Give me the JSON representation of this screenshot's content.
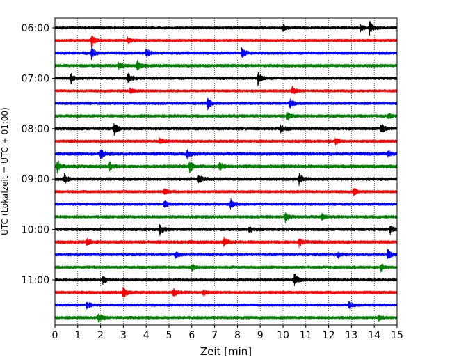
{
  "chart_data": {
    "type": "line",
    "title": "",
    "xlabel": "Zeit  [min]",
    "ylabel": "UTC (Lokalzeit = UTC + 01:00)",
    "xlim": [
      0,
      15
    ],
    "x_ticks": [
      "0",
      "1",
      "2",
      "3",
      "4",
      "5",
      "6",
      "7",
      "8",
      "9",
      "10",
      "11",
      "12",
      "13",
      "14",
      "15"
    ],
    "y_ticks": [
      "06:00",
      "07:00",
      "08:00",
      "09:00",
      "10:00",
      "11:00"
    ],
    "grid": "vertical dotted",
    "legend": "none",
    "trace_interval_min": 15,
    "traces": [
      {
        "start": "06:00",
        "color": "#000000",
        "amplitude": 0.25,
        "events": [
          {
            "t": 13.8,
            "a": 1.0
          },
          {
            "t": 13.4,
            "a": 0.6
          },
          {
            "t": 10.0,
            "a": 0.4
          }
        ]
      },
      {
        "start": "06:15",
        "color": "#ff0000",
        "amplitude": 0.25,
        "events": [
          {
            "t": 1.6,
            "a": 1.0
          },
          {
            "t": 3.2,
            "a": 0.5
          }
        ]
      },
      {
        "start": "06:30",
        "color": "#0000ff",
        "amplitude": 0.3,
        "events": [
          {
            "t": 1.6,
            "a": 0.9
          },
          {
            "t": 4.0,
            "a": 0.7
          },
          {
            "t": 8.2,
            "a": 0.9
          }
        ]
      },
      {
        "start": "06:45",
        "color": "#008000",
        "amplitude": 0.3,
        "events": [
          {
            "t": 3.6,
            "a": 0.8
          },
          {
            "t": 2.8,
            "a": 0.5
          }
        ]
      },
      {
        "start": "07:00",
        "color": "#000000",
        "amplitude": 0.3,
        "events": [
          {
            "t": 0.7,
            "a": 0.7
          },
          {
            "t": 3.2,
            "a": 0.9
          },
          {
            "t": 8.9,
            "a": 1.0
          }
        ]
      },
      {
        "start": "07:15",
        "color": "#ff0000",
        "amplitude": 0.25,
        "events": [
          {
            "t": 10.4,
            "a": 0.6
          },
          {
            "t": 3.3,
            "a": 0.4
          }
        ]
      },
      {
        "start": "07:30",
        "color": "#0000ff",
        "amplitude": 0.25,
        "events": [
          {
            "t": 6.7,
            "a": 0.9
          },
          {
            "t": 10.3,
            "a": 0.7
          }
        ]
      },
      {
        "start": "07:45",
        "color": "#008000",
        "amplitude": 0.3,
        "events": [
          {
            "t": 10.2,
            "a": 0.6
          },
          {
            "t": 14.6,
            "a": 0.4
          }
        ]
      },
      {
        "start": "08:00",
        "color": "#000000",
        "amplitude": 0.35,
        "events": [
          {
            "t": 2.6,
            "a": 0.9
          },
          {
            "t": 14.3,
            "a": 0.8
          },
          {
            "t": 9.9,
            "a": 0.6
          }
        ]
      },
      {
        "start": "08:15",
        "color": "#ff0000",
        "amplitude": 0.3,
        "events": [
          {
            "t": 4.6,
            "a": 0.5
          },
          {
            "t": 12.3,
            "a": 0.5
          }
        ]
      },
      {
        "start": "08:30",
        "color": "#0000ff",
        "amplitude": 0.35,
        "events": [
          {
            "t": 2.0,
            "a": 0.8
          },
          {
            "t": 5.8,
            "a": 0.6
          },
          {
            "t": 14.6,
            "a": 0.5
          }
        ]
      },
      {
        "start": "08:45",
        "color": "#008000",
        "amplitude": 0.45,
        "events": [
          {
            "t": 0.1,
            "a": 1.0
          },
          {
            "t": 2.4,
            "a": 0.6
          },
          {
            "t": 5.9,
            "a": 1.0
          },
          {
            "t": 7.2,
            "a": 0.6
          }
        ]
      },
      {
        "start": "09:00",
        "color": "#000000",
        "amplitude": 0.35,
        "events": [
          {
            "t": 0.4,
            "a": 0.8
          },
          {
            "t": 6.3,
            "a": 0.7
          },
          {
            "t": 10.7,
            "a": 1.0
          }
        ]
      },
      {
        "start": "09:15",
        "color": "#ff0000",
        "amplitude": 0.25,
        "events": [
          {
            "t": 13.1,
            "a": 0.6
          },
          {
            "t": 4.8,
            "a": 0.4
          }
        ]
      },
      {
        "start": "09:30",
        "color": "#0000ff",
        "amplitude": 0.25,
        "events": [
          {
            "t": 7.7,
            "a": 0.8
          },
          {
            "t": 4.8,
            "a": 0.5
          }
        ]
      },
      {
        "start": "09:45",
        "color": "#008000",
        "amplitude": 0.3,
        "events": [
          {
            "t": 10.1,
            "a": 0.8
          },
          {
            "t": 11.7,
            "a": 0.4
          }
        ]
      },
      {
        "start": "10:00",
        "color": "#000000",
        "amplitude": 0.3,
        "events": [
          {
            "t": 4.6,
            "a": 0.9
          },
          {
            "t": 14.7,
            "a": 0.6
          },
          {
            "t": 8.5,
            "a": 0.5
          }
        ]
      },
      {
        "start": "10:15",
        "color": "#ff0000",
        "amplitude": 0.35,
        "events": [
          {
            "t": 7.4,
            "a": 0.7
          },
          {
            "t": 10.7,
            "a": 0.7
          },
          {
            "t": 1.4,
            "a": 0.5
          }
        ]
      },
      {
        "start": "10:30",
        "color": "#0000ff",
        "amplitude": 0.3,
        "events": [
          {
            "t": 14.6,
            "a": 0.9
          },
          {
            "t": 12.4,
            "a": 0.5
          },
          {
            "t": 5.3,
            "a": 0.5
          }
        ]
      },
      {
        "start": "10:45",
        "color": "#008000",
        "amplitude": 0.3,
        "events": [
          {
            "t": 14.3,
            "a": 0.8
          },
          {
            "t": 6.0,
            "a": 0.5
          }
        ]
      },
      {
        "start": "11:00",
        "color": "#000000",
        "amplitude": 0.25,
        "events": [
          {
            "t": 10.5,
            "a": 1.0
          },
          {
            "t": 2.1,
            "a": 0.6
          }
        ]
      },
      {
        "start": "11:15",
        "color": "#ff0000",
        "amplitude": 0.3,
        "events": [
          {
            "t": 3.0,
            "a": 0.9
          },
          {
            "t": 5.2,
            "a": 0.6
          },
          {
            "t": 6.5,
            "a": 0.5
          }
        ]
      },
      {
        "start": "11:30",
        "color": "#0000ff",
        "amplitude": 0.25,
        "events": [
          {
            "t": 1.4,
            "a": 0.6
          },
          {
            "t": 12.9,
            "a": 0.6
          }
        ]
      },
      {
        "start": "11:45",
        "color": "#008000",
        "amplitude": 0.3,
        "events": [
          {
            "t": 1.9,
            "a": 0.7
          },
          {
            "t": 14.2,
            "a": 0.4
          }
        ]
      }
    ]
  }
}
